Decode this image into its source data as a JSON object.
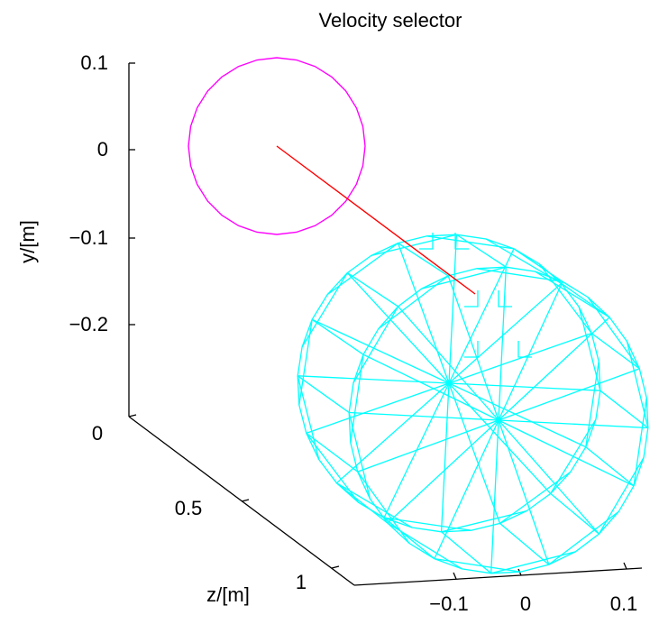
{
  "chart_data": {
    "type": "3d-wireframe",
    "title": "Velocity selector",
    "ylabel": "y/[m]",
    "zlabel": "z/[m]",
    "xlabel": "",
    "x_ticks": [
      "−0.1",
      "0",
      "0.1"
    ],
    "y_ticks": [
      "0.1",
      "0",
      "−0.1",
      "−0.2"
    ],
    "z_ticks": [
      "0",
      "0.5",
      "1"
    ],
    "series": [
      {
        "kind": "beam-aperture-circle",
        "color": "#ff00ff"
      },
      {
        "kind": "particle-trajectory",
        "color": "#ff0000"
      },
      {
        "kind": "wireframe-disks",
        "color": "#00ffff"
      }
    ],
    "colors": {
      "circle": "#ff00ff",
      "trajectory": "#ff0000",
      "wireframe": "#00ffff",
      "axes": "#000000"
    }
  }
}
